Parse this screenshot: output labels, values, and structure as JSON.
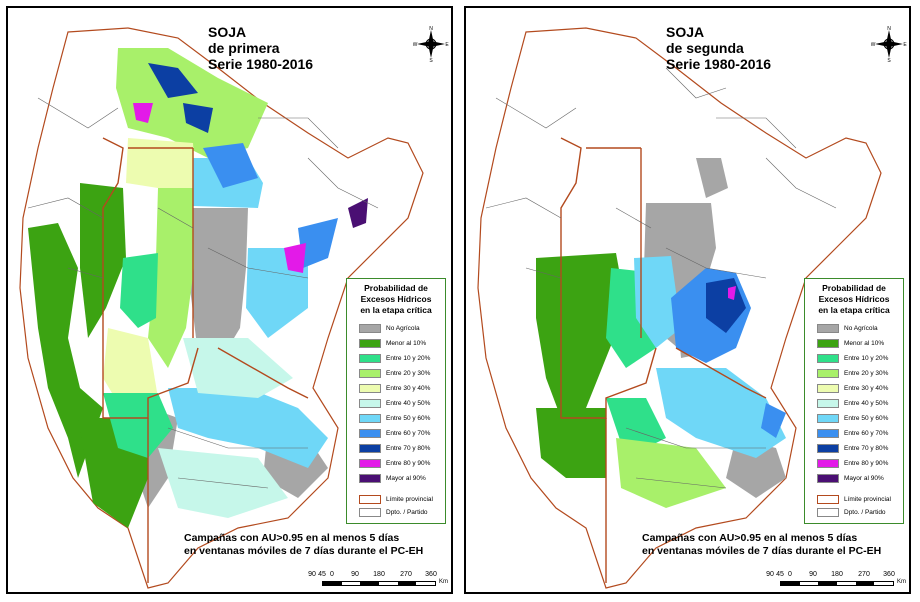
{
  "panels": [
    {
      "title_line1": "SOJA",
      "title_line2": "de primera",
      "title_line3": "Serie 1980-2016",
      "caption_line1": "Campañas con AU>0.95 en al menos 5 días",
      "caption_line2": "en ventanas móviles de 7 días durante el PC-EH"
    },
    {
      "title_line1": "SOJA",
      "title_line2": "de segunda",
      "title_line3": "Serie 1980-2016",
      "caption_line1": "Campañas con AU>0.95 en al menos 5 días",
      "caption_line2": "en ventanas móviles de 7 días durante el PC-EH"
    }
  ],
  "legend": {
    "title_line1": "Probabilidad de",
    "title_line2": "Excesos Hídricos",
    "title_line3": "en la etapa crítica",
    "classes": [
      {
        "label": "No Agrícola",
        "color": "#a6a6a6"
      },
      {
        "label": "Menor al 10%",
        "color": "#3ca312"
      },
      {
        "label": "Entre 10 y 20%",
        "color": "#2fe08a"
      },
      {
        "label": "Entre 20 y 30%",
        "color": "#a8f06a"
      },
      {
        "label": "Entre 30 y 40%",
        "color": "#edfcb0"
      },
      {
        "label": "Entre 40 y 50%",
        "color": "#c6f7ea"
      },
      {
        "label": "Entre 50 y 60%",
        "color": "#6fd7f7"
      },
      {
        "label": "Entre 60 y 70%",
        "color": "#3a8ff0"
      },
      {
        "label": "Entre 70 y 80%",
        "color": "#0c3fa3"
      },
      {
        "label": "Entre 80 y 90%",
        "color": "#e31ae8"
      },
      {
        "label": "Mayor al 90%",
        "color": "#4a0f73"
      }
    ],
    "boundary_provincial": "Límite provincial",
    "boundary_department": "Dpto. / Partido"
  },
  "compass": {
    "n": "N",
    "s": "S",
    "e": "E",
    "w": "W"
  },
  "scale": {
    "labels": [
      "90",
      "45",
      "0",
      "90",
      "180",
      "270",
      "360"
    ],
    "unit": "Km"
  }
}
